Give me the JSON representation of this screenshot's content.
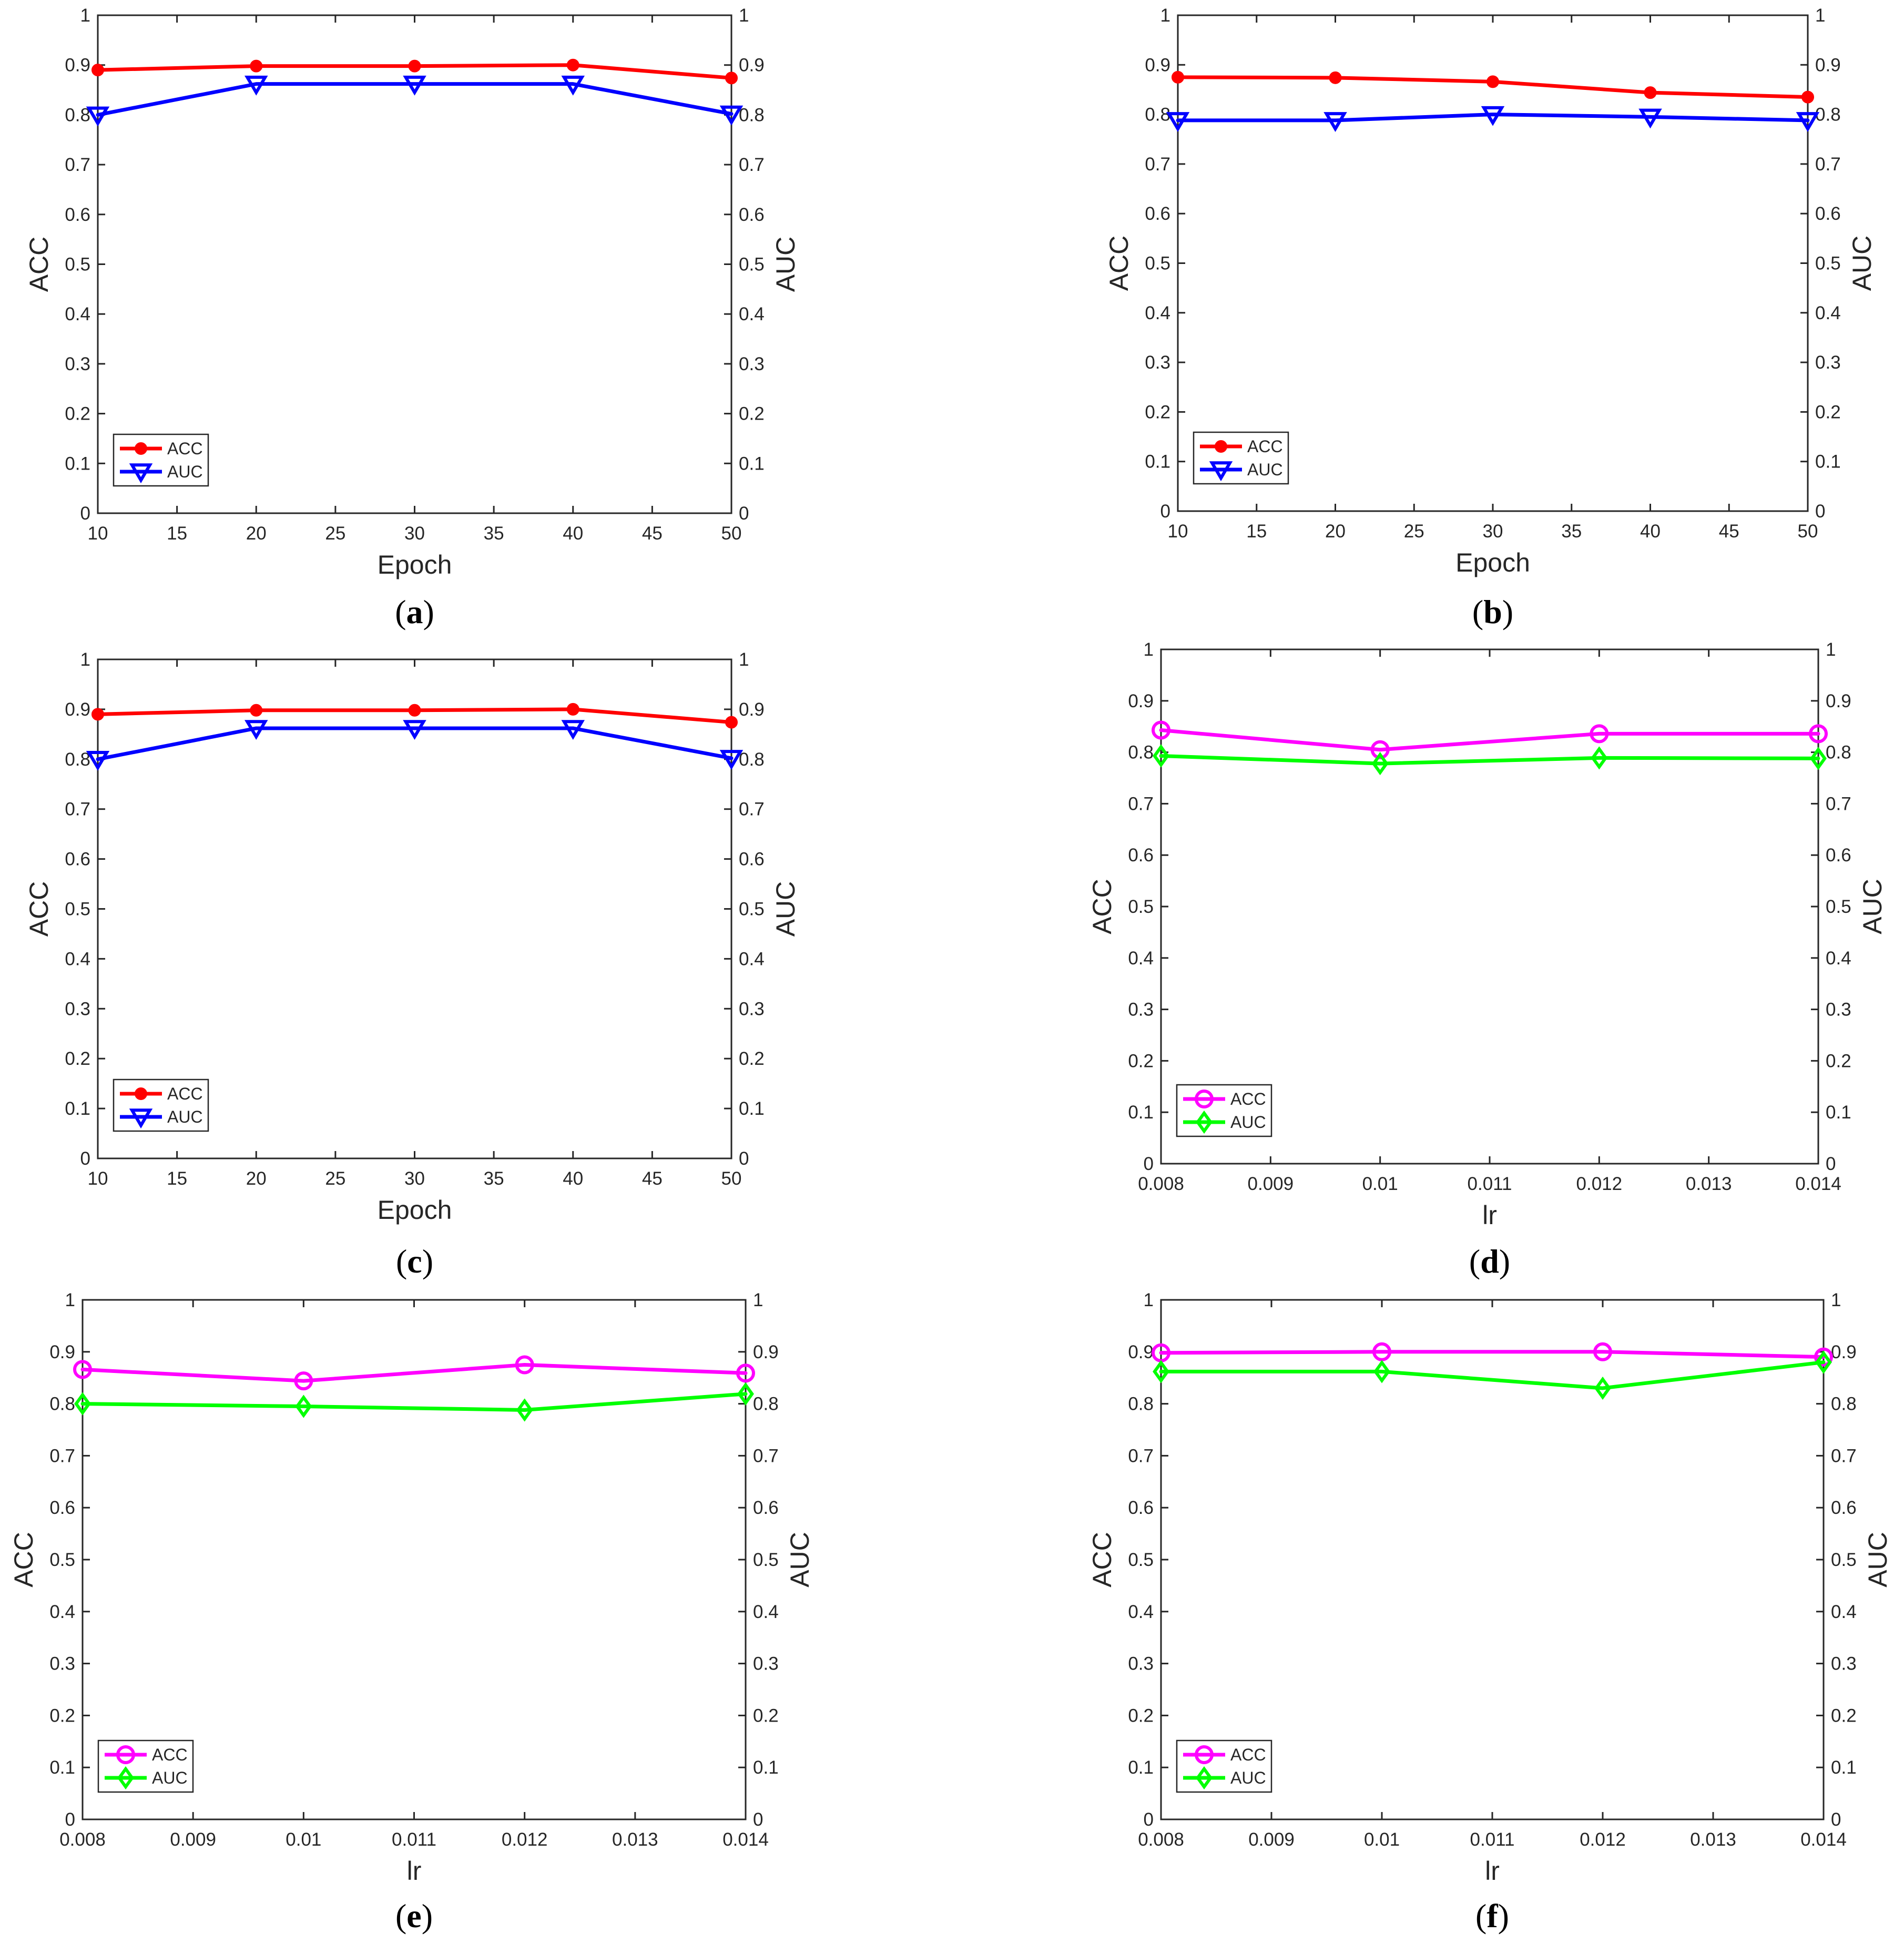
{
  "chart_data": [
    {
      "panel": "a",
      "type": "line",
      "caption": {
        "open": "(",
        "letter": "a",
        "close": ")"
      },
      "xlabel": "Epoch",
      "ylabel_left": "ACC",
      "ylabel_right": "AUC",
      "xlim": [
        10,
        50
      ],
      "ylim": [
        0,
        1
      ],
      "xticks": [
        10,
        15,
        20,
        25,
        30,
        35,
        40,
        45,
        50
      ],
      "xtick_labels": [
        "10",
        "15",
        "20",
        "25",
        "30",
        "35",
        "40",
        "45",
        "50"
      ],
      "yticks": [
        0,
        0.1,
        0.2,
        0.3,
        0.4,
        0.5,
        0.6,
        0.7,
        0.8,
        0.9,
        1
      ],
      "ytick_labels": [
        "0",
        "0.1",
        "0.2",
        "0.3",
        "0.4",
        "0.5",
        "0.6",
        "0.7",
        "0.8",
        "0.9",
        "1"
      ],
      "legend_position": "bottom-left",
      "x": [
        10,
        20,
        30,
        40,
        50
      ],
      "series": [
        {
          "name": "ACC",
          "color": "#ff0000",
          "marker": "filled-circle",
          "values": [
            0.89,
            0.898,
            0.898,
            0.9,
            0.874
          ]
        },
        {
          "name": "AUC",
          "color": "#0000ff",
          "marker": "triangle-down",
          "values": [
            0.8,
            0.862,
            0.862,
            0.862,
            0.802
          ]
        }
      ]
    },
    {
      "panel": "b",
      "type": "line",
      "caption": {
        "open": "(",
        "letter": "b",
        "close": ")"
      },
      "xlabel": "Epoch",
      "ylabel_left": "ACC",
      "ylabel_right": "AUC",
      "xlim": [
        10,
        50
      ],
      "ylim": [
        0,
        1
      ],
      "xticks": [
        10,
        15,
        20,
        25,
        30,
        35,
        40,
        45,
        50
      ],
      "xtick_labels": [
        "10",
        "15",
        "20",
        "25",
        "30",
        "35",
        "40",
        "45",
        "50"
      ],
      "yticks": [
        0,
        0.1,
        0.2,
        0.3,
        0.4,
        0.5,
        0.6,
        0.7,
        0.8,
        0.9,
        1
      ],
      "ytick_labels": [
        "0",
        "0.1",
        "0.2",
        "0.3",
        "0.4",
        "0.5",
        "0.6",
        "0.7",
        "0.8",
        "0.9",
        "1"
      ],
      "legend_position": "bottom-left",
      "x": [
        10,
        20,
        30,
        40,
        50
      ],
      "series": [
        {
          "name": "ACC",
          "color": "#ff0000",
          "marker": "filled-circle",
          "values": [
            0.875,
            0.874,
            0.866,
            0.844,
            0.835
          ]
        },
        {
          "name": "AUC",
          "color": "#0000ff",
          "marker": "triangle-down",
          "values": [
            0.788,
            0.788,
            0.8,
            0.795,
            0.788
          ]
        }
      ]
    },
    {
      "panel": "c",
      "type": "line",
      "caption": {
        "open": "(",
        "letter": "c",
        "close": ")"
      },
      "xlabel": "Epoch",
      "ylabel_left": "ACC",
      "ylabel_right": "AUC",
      "xlim": [
        10,
        50
      ],
      "ylim": [
        0,
        1
      ],
      "xticks": [
        10,
        15,
        20,
        25,
        30,
        35,
        40,
        45,
        50
      ],
      "xtick_labels": [
        "10",
        "15",
        "20",
        "25",
        "30",
        "35",
        "40",
        "45",
        "50"
      ],
      "yticks": [
        0,
        0.1,
        0.2,
        0.3,
        0.4,
        0.5,
        0.6,
        0.7,
        0.8,
        0.9,
        1
      ],
      "ytick_labels": [
        "0",
        "0.1",
        "0.2",
        "0.3",
        "0.4",
        "0.5",
        "0.6",
        "0.7",
        "0.8",
        "0.9",
        "1"
      ],
      "legend_position": "bottom-left",
      "x": [
        10,
        20,
        30,
        40,
        50
      ],
      "series": [
        {
          "name": "ACC",
          "color": "#ff0000",
          "marker": "filled-circle",
          "values": [
            0.89,
            0.898,
            0.898,
            0.9,
            0.874
          ]
        },
        {
          "name": "AUC",
          "color": "#0000ff",
          "marker": "triangle-down",
          "values": [
            0.8,
            0.862,
            0.862,
            0.862,
            0.802
          ]
        }
      ]
    },
    {
      "panel": "d",
      "type": "line",
      "caption": {
        "open": "(",
        "letter": "d",
        "close": ")"
      },
      "xlabel": "lr",
      "ylabel_left": "ACC",
      "ylabel_right": "AUC",
      "xlim": [
        0.008,
        0.014
      ],
      "ylim": [
        0,
        1
      ],
      "xticks": [
        0.008,
        0.009,
        0.01,
        0.011,
        0.012,
        0.013,
        0.014
      ],
      "xtick_labels": [
        "0.008",
        "0.009",
        "0.01",
        "0.011",
        "0.012",
        "0.013",
        "0.014"
      ],
      "yticks": [
        0,
        0.1,
        0.2,
        0.3,
        0.4,
        0.5,
        0.6,
        0.7,
        0.8,
        0.9,
        1
      ],
      "ytick_labels": [
        "0",
        "0.1",
        "0.2",
        "0.3",
        "0.4",
        "0.5",
        "0.6",
        "0.7",
        "0.8",
        "0.9",
        "1"
      ],
      "legend_position": "bottom-left",
      "x": [
        0.008,
        0.01,
        0.012,
        0.014
      ],
      "series": [
        {
          "name": "ACC",
          "color": "#ff00ff",
          "marker": "open-circle",
          "values": [
            0.843,
            0.805,
            0.836,
            0.836
          ]
        },
        {
          "name": "AUC",
          "color": "#00ff00",
          "marker": "diamond",
          "values": [
            0.793,
            0.778,
            0.789,
            0.788
          ]
        }
      ]
    },
    {
      "panel": "e",
      "type": "line",
      "caption": {
        "open": "(",
        "letter": "e",
        "close": ")"
      },
      "xlabel": "lr",
      "ylabel_left": "ACC",
      "ylabel_right": "AUC",
      "xlim": [
        0.008,
        0.014
      ],
      "ylim": [
        0,
        1
      ],
      "xticks": [
        0.008,
        0.009,
        0.01,
        0.011,
        0.012,
        0.013,
        0.014
      ],
      "xtick_labels": [
        "0.008",
        "0.009",
        "0.01",
        "0.011",
        "0.012",
        "0.013",
        "0.014"
      ],
      "yticks": [
        0,
        0.1,
        0.2,
        0.3,
        0.4,
        0.5,
        0.6,
        0.7,
        0.8,
        0.9,
        1
      ],
      "ytick_labels": [
        "0",
        "0.1",
        "0.2",
        "0.3",
        "0.4",
        "0.5",
        "0.6",
        "0.7",
        "0.8",
        "0.9",
        "1"
      ],
      "legend_position": "bottom-left",
      "x": [
        0.008,
        0.01,
        0.012,
        0.014
      ],
      "series": [
        {
          "name": "ACC",
          "color": "#ff00ff",
          "marker": "open-circle",
          "values": [
            0.866,
            0.844,
            0.875,
            0.859
          ]
        },
        {
          "name": "AUC",
          "color": "#00ff00",
          "marker": "diamond",
          "values": [
            0.8,
            0.795,
            0.788,
            0.819
          ]
        }
      ]
    },
    {
      "panel": "f",
      "type": "line",
      "caption": {
        "open": "(",
        "letter": "f",
        "close": ")"
      },
      "xlabel": "lr",
      "ylabel_left": "ACC",
      "ylabel_right": "AUC",
      "xlim": [
        0.008,
        0.014
      ],
      "ylim": [
        0,
        1
      ],
      "xticks": [
        0.008,
        0.009,
        0.01,
        0.011,
        0.012,
        0.013,
        0.014
      ],
      "xtick_labels": [
        "0.008",
        "0.009",
        "0.01",
        "0.011",
        "0.012",
        "0.013",
        "0.014"
      ],
      "yticks": [
        0,
        0.1,
        0.2,
        0.3,
        0.4,
        0.5,
        0.6,
        0.7,
        0.8,
        0.9,
        1
      ],
      "ytick_labels": [
        "0",
        "0.1",
        "0.2",
        "0.3",
        "0.4",
        "0.5",
        "0.6",
        "0.7",
        "0.8",
        "0.9",
        "1"
      ],
      "legend_position": "bottom-left",
      "x": [
        0.008,
        0.01,
        0.012,
        0.014
      ],
      "series": [
        {
          "name": "ACC",
          "color": "#ff00ff",
          "marker": "open-circle",
          "values": [
            0.898,
            0.9,
            0.9,
            0.89
          ]
        },
        {
          "name": "AUC",
          "color": "#00ff00",
          "marker": "diamond",
          "values": [
            0.862,
            0.862,
            0.83,
            0.88
          ]
        }
      ]
    }
  ]
}
